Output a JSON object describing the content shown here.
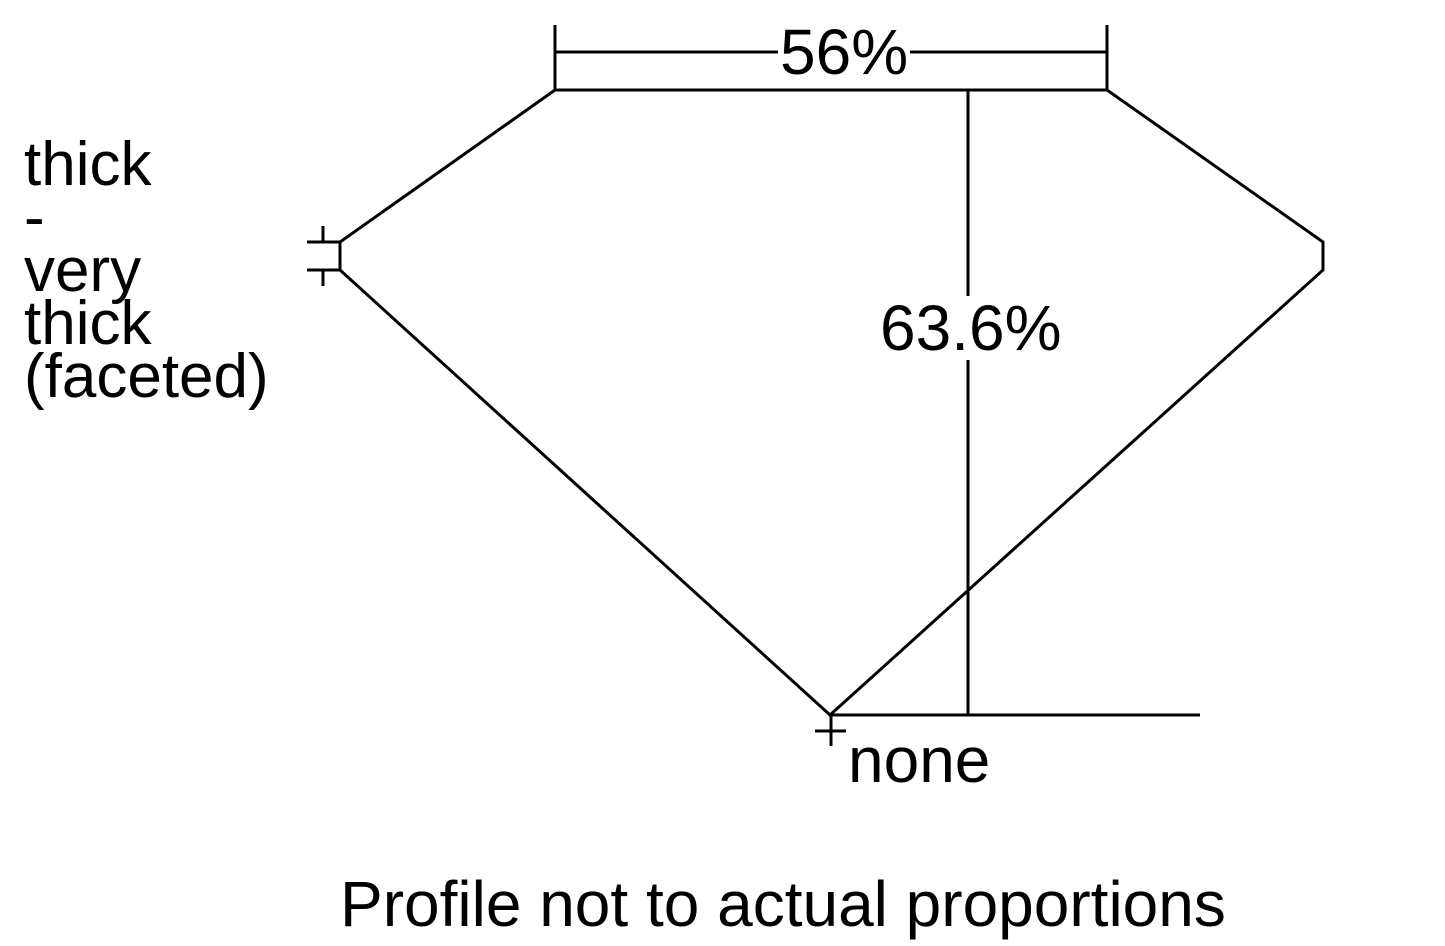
{
  "diagram": {
    "table_percent": "56%",
    "depth_percent": "63.6%",
    "girdle_label_lines": [
      "thick",
      "-",
      "very",
      "thick",
      "(faceted)"
    ],
    "culet_label": "none",
    "note": "Profile not to actual proportions",
    "line_color": "#000000"
  }
}
